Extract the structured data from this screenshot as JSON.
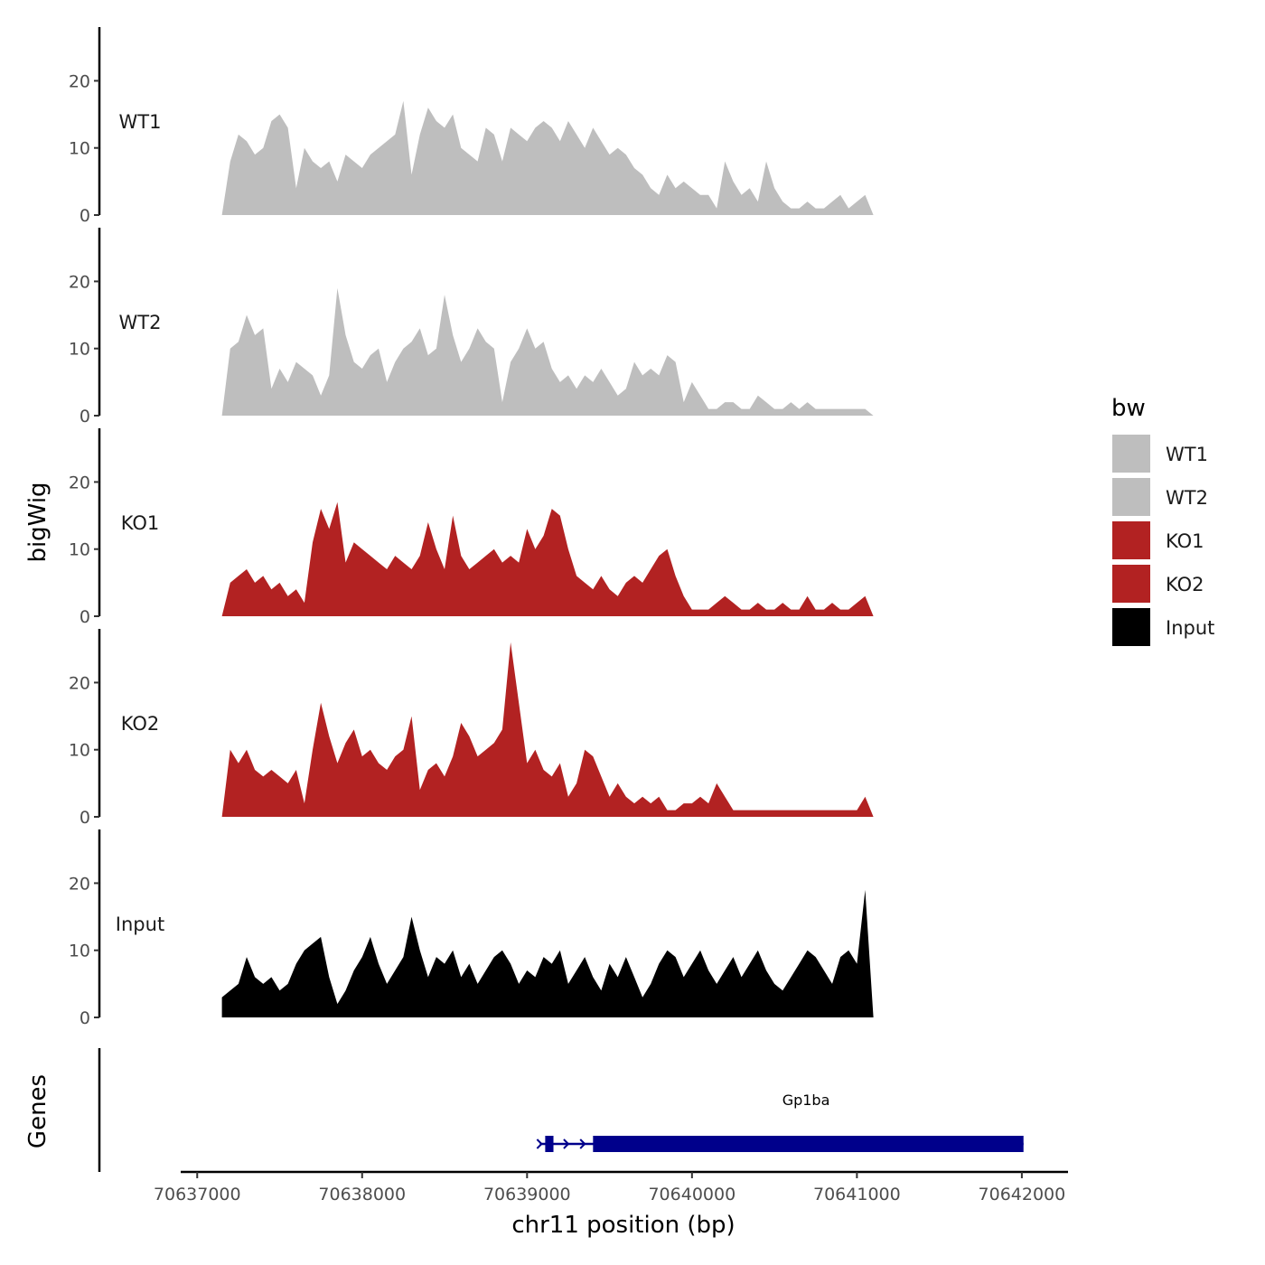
{
  "chart_data": {
    "type": "area",
    "chromosome": "chr11",
    "xlabel": "chr11 position (bp)",
    "ylabel_tracks": "bigWig",
    "ylabel_genes": "Genes",
    "xlim": [
      70636900,
      70642280
    ],
    "x_ticks": [
      70637000,
      70638000,
      70639000,
      70640000,
      70641000,
      70642000
    ],
    "x_tick_labels": [
      "70637000",
      "70638000",
      "70639000",
      "70640000",
      "70641000",
      "70642000"
    ],
    "ylim": [
      0,
      28
    ],
    "y_ticks": [
      0,
      10,
      20
    ],
    "y_tick_labels": [
      "0",
      "10",
      "20"
    ],
    "x_start": 70637150,
    "x_step": 50,
    "legend": {
      "title": "bw",
      "placement": "right",
      "entries": [
        {
          "label": "WT1",
          "color": "#BEBEBE"
        },
        {
          "label": "WT2",
          "color": "#BEBEBE"
        },
        {
          "label": "KO1",
          "color": "#B22222"
        },
        {
          "label": "KO2",
          "color": "#B22222"
        },
        {
          "label": "Input",
          "color": "#000000"
        }
      ]
    },
    "series": [
      {
        "name": "WT1",
        "color": "#BEBEBE",
        "values": [
          0,
          8,
          12,
          11,
          9,
          10,
          14,
          15,
          13,
          4,
          10,
          8,
          7,
          8,
          5,
          9,
          8,
          7,
          9,
          10,
          11,
          12,
          17,
          6,
          12,
          16,
          14,
          13,
          15,
          10,
          9,
          8,
          13,
          12,
          8,
          13,
          12,
          11,
          13,
          14,
          13,
          11,
          14,
          12,
          10,
          13,
          11,
          9,
          10,
          9,
          7,
          6,
          4,
          3,
          6,
          4,
          5,
          4,
          3,
          3,
          1,
          8,
          5,
          3,
          4,
          2,
          8,
          4,
          2,
          1,
          1,
          2,
          1,
          1,
          2,
          3,
          1,
          2,
          3,
          0
        ]
      },
      {
        "name": "WT2",
        "color": "#BEBEBE",
        "values": [
          0,
          10,
          11,
          15,
          12,
          13,
          4,
          7,
          5,
          8,
          7,
          6,
          3,
          6,
          19,
          12,
          8,
          7,
          9,
          10,
          5,
          8,
          10,
          11,
          13,
          9,
          10,
          18,
          12,
          8,
          10,
          13,
          11,
          10,
          2,
          8,
          10,
          13,
          10,
          11,
          7,
          5,
          6,
          4,
          6,
          5,
          7,
          5,
          3,
          4,
          8,
          6,
          7,
          6,
          9,
          8,
          2,
          5,
          3,
          1,
          1,
          2,
          2,
          1,
          1,
          3,
          2,
          1,
          1,
          2,
          1,
          2,
          1,
          1,
          1,
          1,
          1,
          1,
          1,
          0
        ]
      },
      {
        "name": "KO1",
        "color": "#B22222",
        "values": [
          0,
          5,
          6,
          7,
          5,
          6,
          4,
          5,
          3,
          4,
          2,
          11,
          16,
          13,
          17,
          8,
          11,
          10,
          9,
          8,
          7,
          9,
          8,
          7,
          9,
          14,
          10,
          7,
          15,
          9,
          7,
          8,
          9,
          10,
          8,
          9,
          8,
          13,
          10,
          12,
          16,
          15,
          10,
          6,
          5,
          4,
          6,
          4,
          3,
          5,
          6,
          5,
          7,
          9,
          10,
          6,
          3,
          1,
          1,
          1,
          2,
          3,
          2,
          1,
          1,
          2,
          1,
          1,
          2,
          1,
          1,
          3,
          1,
          1,
          2,
          1,
          1,
          2,
          3,
          0
        ]
      },
      {
        "name": "KO2",
        "color": "#B22222",
        "values": [
          0,
          10,
          8,
          10,
          7,
          6,
          7,
          6,
          5,
          7,
          2,
          10,
          17,
          12,
          8,
          11,
          13,
          9,
          10,
          8,
          7,
          9,
          10,
          15,
          4,
          7,
          8,
          6,
          9,
          14,
          12,
          9,
          10,
          11,
          13,
          26,
          17,
          8,
          10,
          7,
          6,
          8,
          3,
          5,
          10,
          9,
          6,
          3,
          5,
          3,
          2,
          3,
          2,
          3,
          1,
          1,
          2,
          2,
          3,
          2,
          5,
          3,
          1,
          1,
          1,
          1,
          1,
          1,
          1,
          1,
          1,
          1,
          1,
          1,
          1,
          1,
          1,
          1,
          3,
          0
        ]
      },
      {
        "name": "Input",
        "color": "#000000",
        "values": [
          3,
          4,
          5,
          9,
          6,
          5,
          6,
          4,
          5,
          8,
          10,
          11,
          12,
          6,
          2,
          4,
          7,
          9,
          12,
          8,
          5,
          7,
          9,
          15,
          10,
          6,
          9,
          8,
          10,
          6,
          8,
          5,
          7,
          9,
          10,
          8,
          5,
          7,
          6,
          9,
          8,
          10,
          5,
          7,
          9,
          6,
          4,
          8,
          6,
          9,
          6,
          3,
          5,
          8,
          10,
          9,
          6,
          8,
          10,
          7,
          5,
          7,
          9,
          6,
          8,
          10,
          7,
          5,
          4,
          6,
          8,
          10,
          9,
          7,
          5,
          9,
          10,
          8,
          19,
          0
        ]
      }
    ],
    "genes": [
      {
        "name": "Gp1ba",
        "strand": "+",
        "start": 70639110,
        "end": 70642010,
        "exons": [
          [
            70639110,
            70639160
          ],
          [
            70639400,
            70642010
          ]
        ],
        "color": "#00008B"
      }
    ]
  }
}
